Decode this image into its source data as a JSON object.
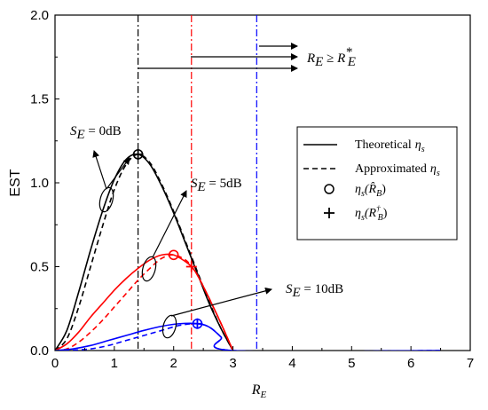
{
  "chart_data": {
    "type": "line",
    "xlabel_main": "R",
    "xlabel_sub": "E",
    "ylabel": "EST",
    "xlim": [
      0,
      7
    ],
    "ylim": [
      0,
      2.0
    ],
    "xticks": [
      0,
      1,
      2,
      3,
      4,
      5,
      6,
      7
    ],
    "yticks": [
      0.0,
      0.5,
      1.0,
      1.5,
      2.0
    ],
    "xtick_labels": [
      "0",
      "1",
      "2",
      "3",
      "4",
      "5",
      "6",
      "7"
    ],
    "ytick_labels": [
      "0.0",
      "0.5",
      "1.0",
      "1.5",
      "2.0"
    ],
    "grid": false,
    "legend_position": "middle-right",
    "legend": [
      {
        "style": "solid",
        "text": "Theoretical",
        "symbol": "η",
        "sub": "s"
      },
      {
        "style": "dashed",
        "text": "Approximated",
        "symbol": "η",
        "sub": "s"
      },
      {
        "style": "circle",
        "text": "",
        "symbol": "η",
        "sub": "s",
        "arg": "(R̂",
        "arg_sub": "B",
        "close": ")"
      },
      {
        "style": "plus",
        "text": "",
        "symbol": "η",
        "sub": "s",
        "arg": "(R",
        "arg_sup": "†",
        "arg_sub": "B",
        "close": ")"
      }
    ],
    "series": [
      {
        "color": "#000000",
        "theoretical": {
          "x": [
            0,
            0.2,
            0.4,
            0.6,
            0.8,
            1.0,
            1.2,
            1.4,
            1.6,
            1.8,
            2.0,
            2.2,
            2.4,
            2.6,
            2.8,
            3.0
          ],
          "y": [
            0,
            0.12,
            0.35,
            0.6,
            0.83,
            1.02,
            1.14,
            1.17,
            1.11,
            0.98,
            0.82,
            0.64,
            0.46,
            0.28,
            0.13,
            0.0
          ]
        },
        "approximated": {
          "x": [
            0,
            0.2,
            0.4,
            0.6,
            0.8,
            1.0,
            1.2,
            1.4,
            1.6,
            1.8,
            2.0,
            2.2,
            2.4,
            2.6,
            2.8,
            3.0
          ],
          "y": [
            0,
            0.07,
            0.26,
            0.5,
            0.74,
            0.96,
            1.11,
            1.17,
            1.12,
            0.99,
            0.83,
            0.65,
            0.47,
            0.29,
            0.13,
            0.0
          ]
        },
        "opt_circle": {
          "x": 1.4,
          "y": 1.17
        },
        "opt_plus": {
          "x": 1.4,
          "y": 1.17
        },
        "vline_x": 1.4
      },
      {
        "color": "#ff0000",
        "theoretical": {
          "x": [
            0,
            0.2,
            0.4,
            0.6,
            0.8,
            1.0,
            1.2,
            1.4,
            1.6,
            1.8,
            2.0,
            2.2,
            2.3,
            2.4,
            2.6,
            2.8,
            3.0
          ],
          "y": [
            0,
            0.04,
            0.11,
            0.2,
            0.28,
            0.36,
            0.43,
            0.49,
            0.54,
            0.57,
            0.57,
            0.53,
            0.5,
            0.45,
            0.31,
            0.16,
            0.0
          ]
        },
        "approximated": {
          "x": [
            0,
            0.2,
            0.4,
            0.6,
            0.8,
            1.0,
            1.2,
            1.4,
            1.6,
            1.8,
            2.0,
            2.2,
            2.3,
            2.4,
            2.6,
            2.8,
            3.0
          ],
          "y": [
            0,
            0.01,
            0.05,
            0.11,
            0.18,
            0.26,
            0.34,
            0.42,
            0.49,
            0.55,
            0.57,
            0.54,
            0.5,
            0.45,
            0.31,
            0.16,
            0.0
          ]
        },
        "opt_circle": {
          "x": 2.0,
          "y": 0.57
        },
        "opt_plus": {
          "x": 2.3,
          "y": 0.5
        },
        "vline_x": 2.3
      },
      {
        "color": "#0000ff",
        "theoretical": {
          "x": [
            0,
            0.3,
            0.6,
            0.9,
            1.2,
            1.5,
            1.8,
            2.1,
            2.4,
            2.6,
            2.8,
            3.0,
            6.5
          ],
          "y": [
            0,
            0.01,
            0.03,
            0.06,
            0.09,
            0.12,
            0.145,
            0.16,
            0.16,
            0.14,
            0.08,
            0.0,
            0.0
          ]
        },
        "approximated": {
          "x": [
            0,
            0.3,
            0.6,
            0.9,
            1.2,
            1.5,
            1.8,
            2.1,
            2.4,
            2.6,
            2.8,
            3.0,
            6.5
          ],
          "y": [
            0,
            0.002,
            0.01,
            0.03,
            0.06,
            0.09,
            0.12,
            0.15,
            0.16,
            0.14,
            0.08,
            0.0,
            0.0
          ]
        },
        "opt_circle": {
          "x": 2.4,
          "y": 0.16
        },
        "opt_plus": {
          "x": 2.4,
          "y": 0.16
        },
        "vline_x": 3.4
      }
    ],
    "annotations": [
      {
        "symbol": "S",
        "sub": "E",
        "text": " = 0dB"
      },
      {
        "symbol": "S",
        "sub": "E",
        "text": " = 5dB"
      },
      {
        "symbol": "S",
        "sub": "E",
        "text": " = 10dB"
      },
      {
        "symbol": "R",
        "sub": "E",
        "rel": " ≥ ",
        "symbol2": "R",
        "sub2": "E",
        "sup2": "*"
      }
    ]
  }
}
